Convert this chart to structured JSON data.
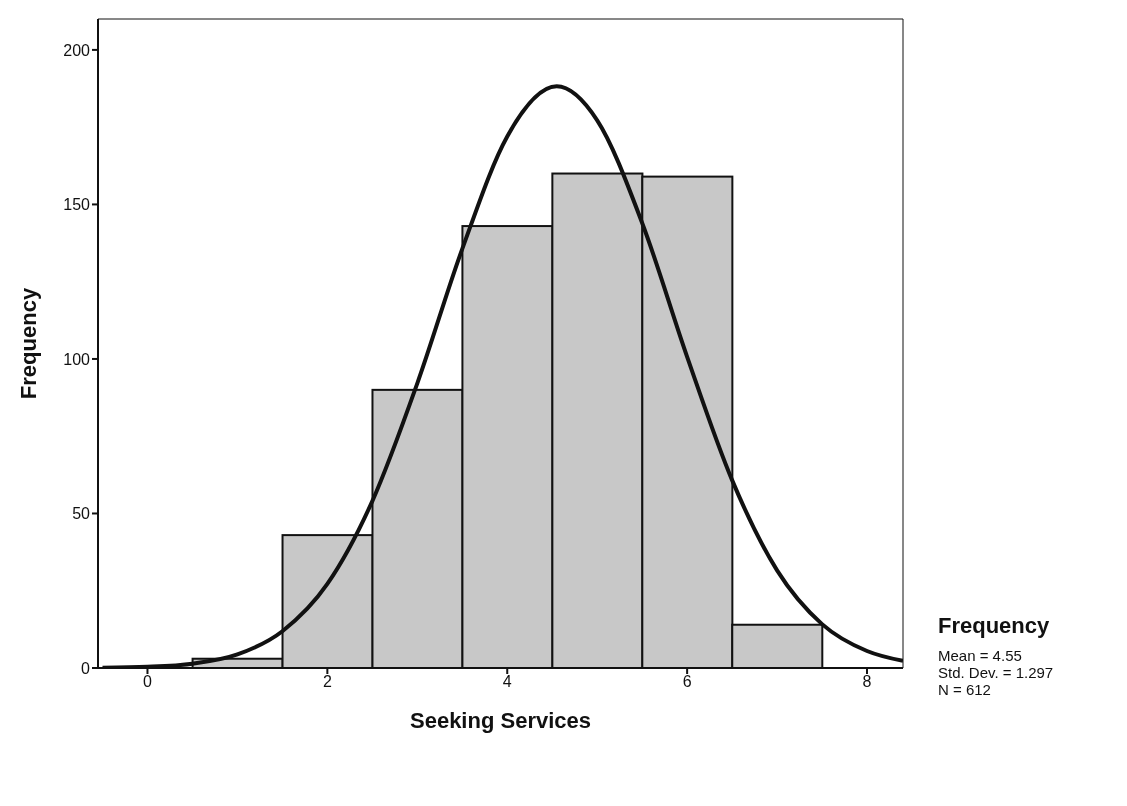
{
  "chart_data": {
    "type": "histogram",
    "xlabel": "Seeking Services",
    "ylabel": "Frequency",
    "bins": [
      0.5,
      1.5,
      2.5,
      3.5,
      4.5,
      5.5,
      6.5,
      7.5
    ],
    "values": [
      3,
      43,
      90,
      143,
      160,
      159,
      14
    ],
    "color": "#c8c8c8",
    "series": [
      {
        "type": "line",
        "color": "#111111",
        "x": [
          -0.5,
          0,
          0.5,
          1,
          1.5,
          2,
          2.5,
          3,
          3.5,
          4,
          4.55,
          5,
          5.5,
          6,
          6.5,
          7,
          7.5,
          8,
          8.4
        ],
        "values": [
          0.1,
          0.4,
          1.4,
          4.4,
          11.9,
          27.2,
          54,
          92.1,
          135.6,
          172,
          188.2,
          177.2,
          144,
          100.7,
          60.8,
          31.6,
          14.2,
          5.5,
          2.3
        ]
      }
    ],
    "xlim": [
      -0.55,
      8.4
    ],
    "xticks": [
      0,
      2,
      4,
      6,
      8
    ],
    "ylim": [
      0,
      210
    ],
    "yticks": [
      0,
      50,
      100,
      150,
      200
    ],
    "marker": "none",
    "line_style": "solid",
    "annotations": [
      "Frequency",
      "Mean = 4.55",
      "Std. Dev. = 1.297",
      "N = 612"
    ]
  }
}
